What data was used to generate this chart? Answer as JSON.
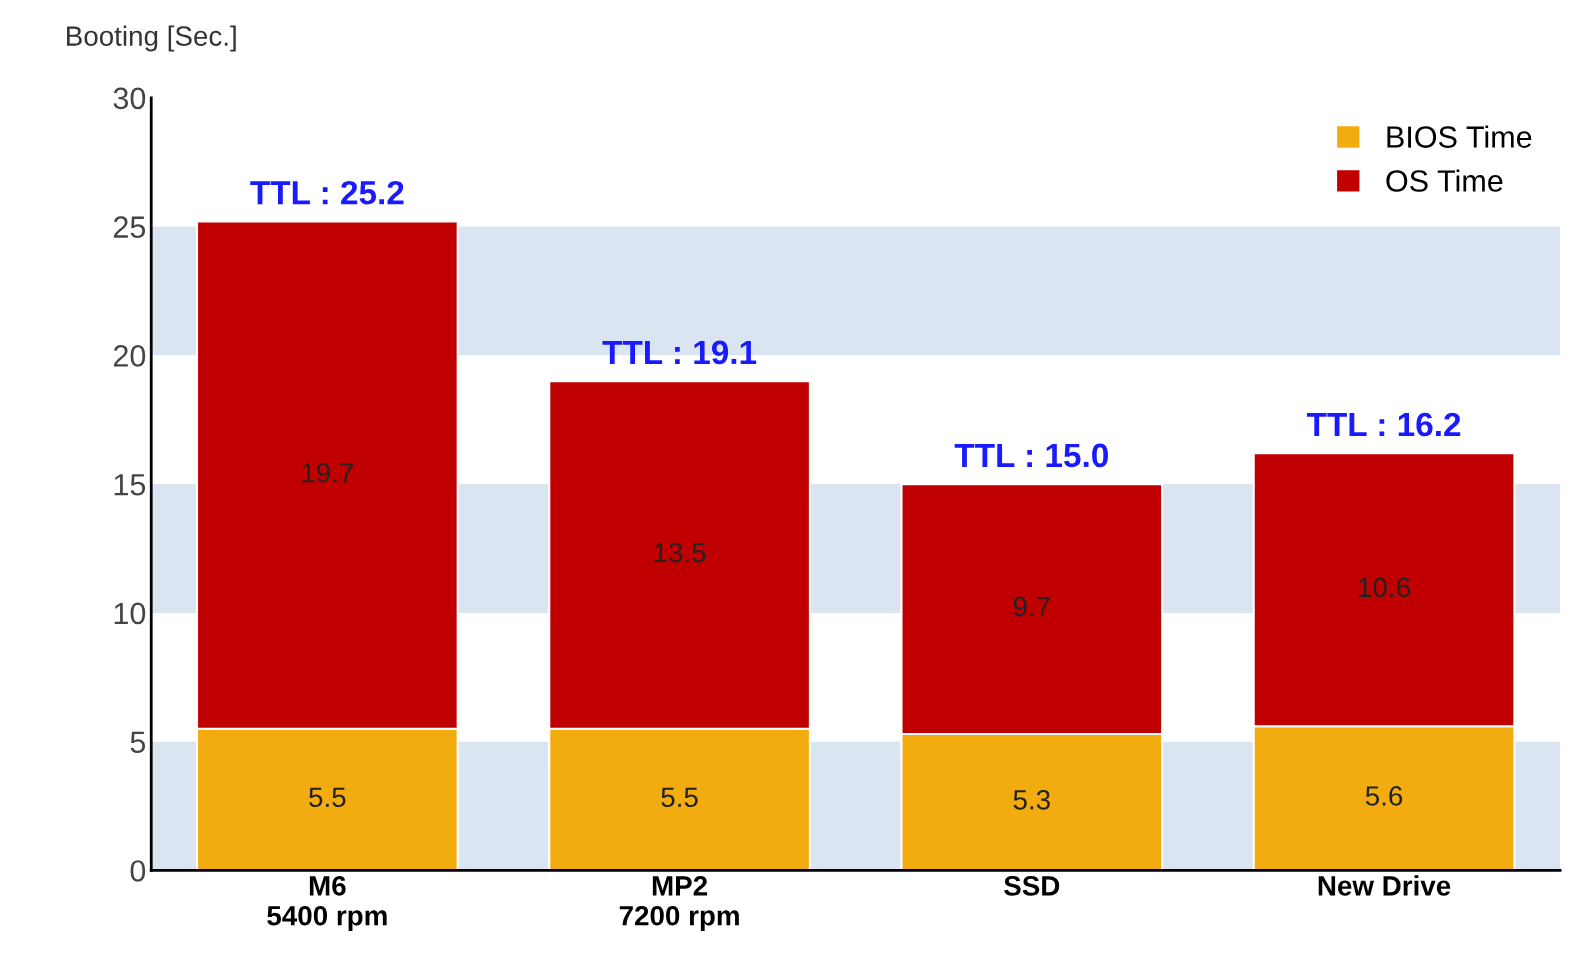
{
  "chart_data": {
    "type": "bar",
    "stacked": true,
    "ylabel": "Booting [Sec.]",
    "categories": [
      "M6\n5400 rpm",
      "MP2\n7200 rpm",
      "SSD",
      "New Drive"
    ],
    "series": [
      {
        "name": "BIOS Time",
        "color": "#f2ac10",
        "values": [
          5.5,
          5.5,
          5.3,
          5.6
        ]
      },
      {
        "name": "OS Time",
        "color": "#c00000",
        "values": [
          19.7,
          13.5,
          9.7,
          10.6
        ]
      }
    ],
    "totals": [
      "TTL : 25.2",
      "TTL : 19.1",
      "TTL : 15.0",
      "TTL : 16.2"
    ],
    "data_labels": true,
    "ylim": [
      0,
      30
    ],
    "yticks": [
      0,
      5,
      10,
      15,
      20,
      25,
      30
    ],
    "bands": [
      {
        "axis": "y",
        "from": 0,
        "to": 5,
        "color": "#dbe5f1"
      },
      {
        "axis": "y",
        "from": 10,
        "to": 15,
        "color": "#dbe5f1"
      },
      {
        "axis": "y",
        "from": 20,
        "to": 25,
        "color": "#dbe5f1"
      }
    ],
    "grid": false,
    "legend": "top right"
  }
}
